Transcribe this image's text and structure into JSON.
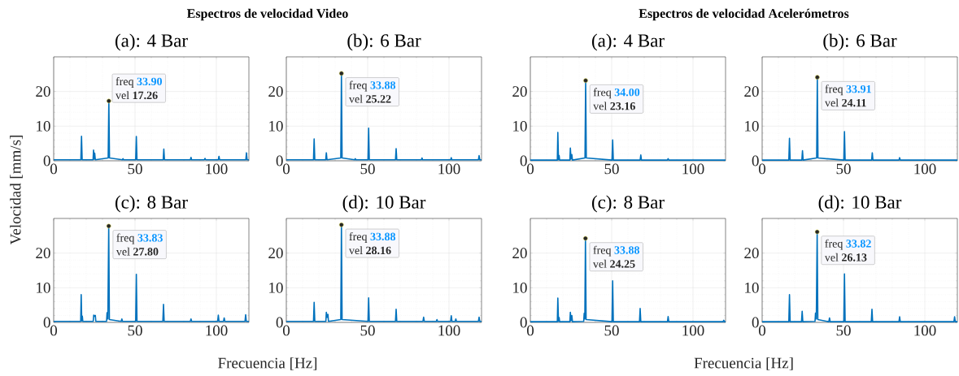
{
  "chart_data": [
    {
      "type": "line",
      "title": "(a): 4 Bar",
      "color": "#0072bd",
      "xlim": [
        0,
        120
      ],
      "ylim": [
        0,
        30
      ],
      "xticks": [
        0,
        50,
        100
      ],
      "yticks": [
        0,
        10,
        20
      ],
      "grid": true,
      "annotations": [
        "Espectros de velocidad Video",
        {
          "text": "freq **33.90**",
          "x": 33.9,
          "y": 17.26
        },
        {
          "text": "vel **17.26**",
          "x": 33.9,
          "y": 17.26
        }
      ],
      "x": [
        0,
        16.7,
        17.1,
        17.5,
        24.2,
        24.5,
        24.85,
        25.2,
        25.6,
        33.5,
        33.9,
        34.3,
        42.2,
        42.6,
        43.0,
        50.4,
        50.8,
        51.2,
        67.3,
        67.7,
        68.1,
        84.0,
        84.4,
        84.8,
        92.6,
        93.0,
        93.4,
        101.2,
        101.6,
        102.0,
        118.1,
        118.5,
        118.9,
        120
      ],
      "values": [
        0.3,
        0.3,
        7.1,
        0.3,
        0.3,
        3.1,
        0.5,
        2.2,
        0.3,
        0.8,
        17.26,
        0.8,
        0.3,
        0.6,
        0.3,
        0.3,
        7.0,
        0.3,
        0.3,
        3.4,
        0.3,
        0.3,
        1.0,
        0.3,
        0.3,
        0.7,
        0.3,
        0.3,
        1.3,
        0.3,
        0.3,
        2.3,
        0.3,
        0.3
      ]
    },
    {
      "type": "line",
      "title": "(b): 6 Bar",
      "color": "#0072bd",
      "xlim": [
        0,
        120
      ],
      "ylim": [
        0,
        30
      ],
      "xticks": [
        0,
        50,
        100
      ],
      "yticks": [
        0,
        10,
        20
      ],
      "grid": true,
      "annotations": [
        {
          "text": "freq **33.88**",
          "x": 33.88,
          "y": 25.22
        },
        {
          "text": "vel **25.22**",
          "x": 33.88,
          "y": 25.22
        }
      ],
      "x": [
        0,
        16.7,
        17.1,
        17.5,
        24.2,
        24.6,
        25.0,
        33.48,
        33.88,
        34.28,
        42.0,
        42.4,
        42.8,
        50.2,
        50.6,
        51.0,
        67.1,
        67.5,
        67.9,
        83.0,
        83.4,
        83.8,
        101.0,
        101.4,
        101.8,
        118.1,
        118.5,
        118.9,
        120
      ],
      "values": [
        0.3,
        0.3,
        6.3,
        0.3,
        0.3,
        2.3,
        0.3,
        0.8,
        25.22,
        0.8,
        0.3,
        0.6,
        0.3,
        0.3,
        9.4,
        0.3,
        0.3,
        3.5,
        0.3,
        0.3,
        0.8,
        0.3,
        0.3,
        0.9,
        0.3,
        0.3,
        1.5,
        0.3,
        0.3
      ]
    },
    {
      "type": "line",
      "title": "(a): 4 Bar",
      "color": "#0072bd",
      "xlim": [
        0,
        120
      ],
      "ylim": [
        0,
        30
      ],
      "xticks": [
        0,
        50,
        100
      ],
      "yticks": [
        0,
        10,
        20
      ],
      "grid": true,
      "annotations": [
        "Espectros de velocidad Acelerómetros",
        {
          "text": "freq **34.00**",
          "x": 34.0,
          "y": 23.16
        },
        {
          "text": "vel **23.16**",
          "x": 34.0,
          "y": 23.16
        }
      ],
      "x": [
        0,
        16.6,
        16.9,
        17.3,
        17.7,
        18.0,
        24.3,
        24.6,
        25.0,
        25.5,
        25.9,
        33.6,
        34.0,
        34.4,
        50.2,
        50.6,
        51.0,
        67.5,
        67.9,
        68.3,
        84.3,
        84.7,
        85.1,
        120
      ],
      "values": [
        0.2,
        0.2,
        8.2,
        0.3,
        1.5,
        0.2,
        0.2,
        3.7,
        0.5,
        1.8,
        0.2,
        0.8,
        23.16,
        0.8,
        0.2,
        6.0,
        0.2,
        0.2,
        1.7,
        0.2,
        0.2,
        0.6,
        0.2,
        0.2
      ]
    },
    {
      "type": "line",
      "title": "(b): 6 Bar",
      "color": "#0072bd",
      "xlim": [
        0,
        120
      ],
      "ylim": [
        0,
        30
      ],
      "xticks": [
        0,
        50,
        100
      ],
      "yticks": [
        0,
        10,
        20
      ],
      "grid": true,
      "annotations": [
        {
          "text": "freq **33.91**",
          "x": 33.91,
          "y": 24.11
        },
        {
          "text": "vel **24.11**",
          "x": 33.91,
          "y": 24.11
        }
      ],
      "x": [
        0,
        16.4,
        16.8,
        17.2,
        24.4,
        24.8,
        25.2,
        33.51,
        33.91,
        34.31,
        50.2,
        50.6,
        51.0,
        67.3,
        67.7,
        68.1,
        84.1,
        84.5,
        84.9,
        120
      ],
      "values": [
        0.2,
        0.2,
        6.5,
        0.2,
        0.2,
        2.9,
        0.2,
        0.8,
        24.11,
        0.8,
        0.2,
        8.4,
        0.2,
        0.2,
        2.3,
        0.2,
        0.2,
        0.9,
        0.2,
        0.2
      ]
    },
    {
      "type": "line",
      "title": "(c): 8 Bar",
      "color": "#0072bd",
      "xlim": [
        0,
        120
      ],
      "ylim": [
        0,
        30
      ],
      "xticks": [
        0,
        50,
        100
      ],
      "yticks": [
        0,
        10,
        20
      ],
      "grid": true,
      "xlabel": "Frecuencia [Hz]",
      "ylabel": "Velocidad [mm/s]",
      "annotations": [
        {
          "text": "freq **33.83**",
          "x": 33.83,
          "y": 27.8
        },
        {
          "text": "vel **27.80**",
          "x": 33.83,
          "y": 27.8
        }
      ],
      "x": [
        0,
        16.6,
        16.9,
        17.25,
        17.6,
        17.9,
        24.3,
        24.6,
        25.1,
        25.6,
        25.9,
        32.5,
        32.8,
        33.3,
        33.83,
        34.23,
        41.5,
        41.9,
        42.3,
        50.4,
        50.8,
        51.2,
        67.1,
        67.5,
        67.9,
        84.0,
        84.4,
        84.8,
        100.8,
        101.2,
        101.6,
        104.4,
        104.8,
        105.2,
        117.6,
        118.0,
        118.4,
        120
      ],
      "values": [
        0.3,
        0.3,
        8.0,
        0.4,
        1.8,
        0.3,
        0.3,
        2.1,
        1.8,
        2.0,
        0.3,
        0.3,
        2.8,
        1.0,
        27.8,
        0.8,
        0.3,
        1.0,
        0.3,
        0.3,
        13.9,
        0.3,
        0.3,
        5.2,
        0.3,
        0.3,
        1.0,
        0.3,
        0.3,
        2.1,
        0.3,
        0.3,
        1.3,
        0.3,
        0.3,
        2.2,
        0.3,
        0.3
      ]
    },
    {
      "type": "line",
      "title": "(d): 10 Bar",
      "color": "#0072bd",
      "xlim": [
        0,
        120
      ],
      "ylim": [
        0,
        30
      ],
      "xticks": [
        0,
        50,
        100
      ],
      "yticks": [
        0,
        10,
        20
      ],
      "grid": true,
      "annotations": [
        {
          "text": "freq **33.88**",
          "x": 33.88,
          "y": 28.16
        },
        {
          "text": "vel **28.16**",
          "x": 33.88,
          "y": 28.16
        }
      ],
      "x": [
        0,
        16.7,
        17.1,
        17.5,
        24.3,
        24.6,
        25.1,
        25.6,
        25.9,
        33.48,
        33.88,
        34.28,
        50.2,
        50.6,
        51.0,
        67.1,
        67.5,
        67.9,
        84.0,
        84.4,
        84.8,
        92.2,
        92.6,
        93.0,
        101.0,
        101.4,
        101.8,
        103.8,
        104.2,
        104.6,
        118.1,
        118.5,
        118.9,
        120
      ],
      "values": [
        0.3,
        0.3,
        5.8,
        0.3,
        0.3,
        2.9,
        1.5,
        2.3,
        0.3,
        0.8,
        28.16,
        0.8,
        0.3,
        7.1,
        0.3,
        0.3,
        3.8,
        0.3,
        0.3,
        1.5,
        0.3,
        0.3,
        0.8,
        0.3,
        0.3,
        1.9,
        0.3,
        0.3,
        1.0,
        0.3,
        0.3,
        1.5,
        0.3,
        0.3
      ]
    },
    {
      "type": "line",
      "title": "(c): 8 Bar",
      "color": "#0072bd",
      "xlim": [
        0,
        120
      ],
      "ylim": [
        0,
        30
      ],
      "xticks": [
        0,
        50,
        100
      ],
      "yticks": [
        0,
        10,
        20
      ],
      "grid": true,
      "xlabel": "Frecuencia [Hz]",
      "annotations": [
        {
          "text": "freq **33.88**",
          "x": 33.88,
          "y": 24.25
        },
        {
          "text": "vel **24.25**",
          "x": 33.88,
          "y": 24.25
        }
      ],
      "x": [
        0,
        16.6,
        16.9,
        17.3,
        17.7,
        18.0,
        24.3,
        24.6,
        25.0,
        25.5,
        25.9,
        32.8,
        33.1,
        33.5,
        33.88,
        34.28,
        50.2,
        50.6,
        51.0,
        67.1,
        67.5,
        67.9,
        84.3,
        84.7,
        85.1,
        118.5,
        118.9,
        119.3,
        120
      ],
      "values": [
        0.2,
        0.2,
        7.0,
        0.3,
        1.4,
        0.2,
        0.2,
        2.9,
        0.5,
        2.0,
        0.2,
        0.3,
        2.6,
        1.0,
        24.25,
        0.8,
        0.2,
        12.0,
        0.2,
        0.2,
        4.0,
        0.2,
        0.2,
        1.7,
        0.2,
        0.2,
        0.6,
        0.2,
        0.2
      ]
    },
    {
      "type": "line",
      "title": "(d): 10 Bar",
      "color": "#0072bd",
      "xlim": [
        0,
        120
      ],
      "ylim": [
        0,
        30
      ],
      "xticks": [
        0,
        50,
        100
      ],
      "yticks": [
        0,
        10,
        20
      ],
      "grid": true,
      "annotations": [
        {
          "text": "freq **33.82**",
          "x": 33.82,
          "y": 26.13
        },
        {
          "text": "vel **26.13**",
          "x": 33.82,
          "y": 26.13
        }
      ],
      "x": [
        0,
        16.4,
        16.8,
        17.2,
        24.2,
        24.6,
        25.0,
        32.5,
        32.8,
        33.3,
        33.82,
        34.22,
        41.0,
        41.4,
        41.8,
        50.2,
        50.6,
        51.0,
        67.1,
        67.5,
        67.9,
        84.1,
        84.5,
        84.9,
        117.9,
        118.3,
        118.7,
        120
      ],
      "values": [
        0.2,
        0.2,
        8.0,
        0.2,
        0.2,
        3.2,
        0.2,
        0.3,
        2.7,
        1.0,
        26.13,
        0.8,
        0.2,
        1.3,
        0.2,
        0.2,
        14.0,
        0.2,
        0.2,
        3.8,
        0.2,
        0.2,
        1.6,
        0.2,
        0.2,
        1.6,
        0.2,
        0.2
      ]
    }
  ]
}
